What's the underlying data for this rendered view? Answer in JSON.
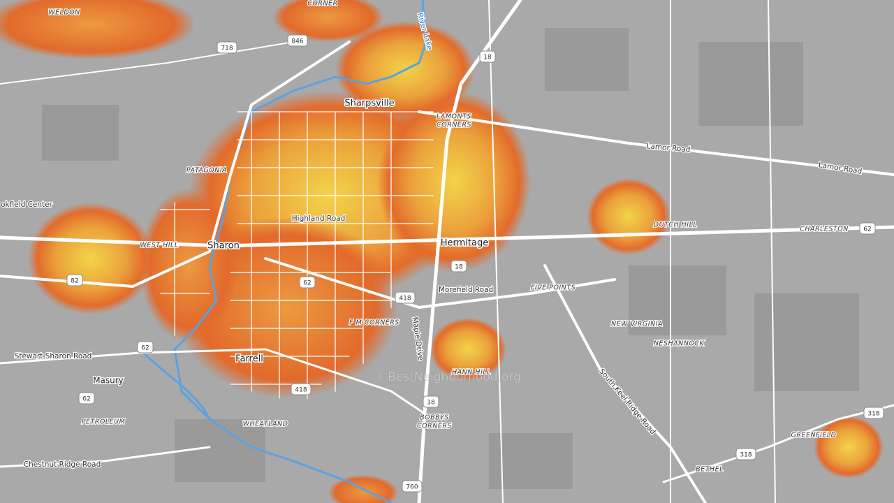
{
  "places": [
    "WELDON",
    "CORNER",
    "Sharpsville",
    "LAMONTS",
    "CORNERS",
    "PATAGONIA",
    "okfield Center",
    "WEST HILL",
    "Sharon",
    "Hermitage",
    "DUTCH HILL",
    "CHARLESTON",
    "FIVE POINTS",
    "F M CORNERS",
    "NEW VIRGINIA",
    "NESHANNOCK",
    "Farrell",
    "HANN HILL",
    "Masury",
    "PETROLEUM",
    "WHEATLAND",
    "BOBBYS",
    "CORNERS",
    "GREENFIELD",
    "BETHEL"
  ],
  "roads": [
    "Lamor Road",
    "Lamor Road",
    "Highland Road",
    "Morefield Road",
    "Maple Drive",
    "Stewart Sharon Road",
    "South Keel Ridge Road",
    "Chestnut Ridge Road"
  ],
  "water": [
    "River Lake"
  ],
  "shields": [
    "718",
    "846",
    "18",
    "62",
    "82",
    "18",
    "62",
    "418",
    "62",
    "62",
    "418",
    "18",
    "318",
    "318",
    "760"
  ],
  "watermark": "©BestNeighborhood.org"
}
